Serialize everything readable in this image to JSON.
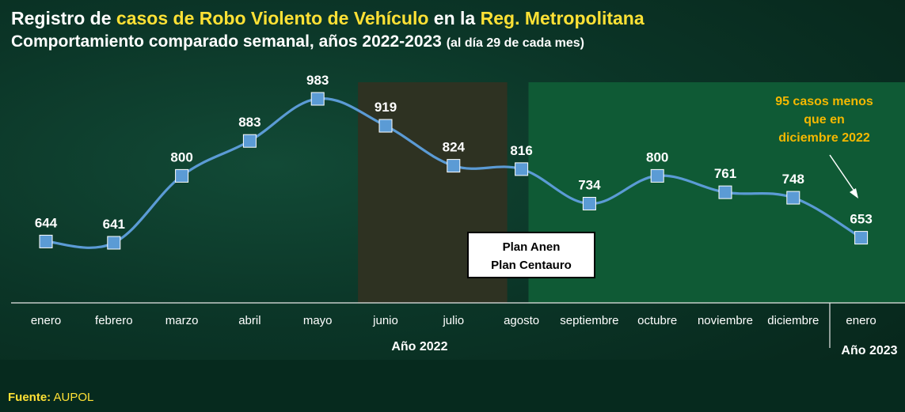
{
  "header": {
    "line1_a": "Registro de ",
    "line1_b": "casos de Robo Violento de Vehículo",
    "line1_c": " en la ",
    "line1_d": "Reg. Metropolitana",
    "line2_a": "Comportamiento comparado semanal, años 2022-2023 ",
    "line2_b": "(al día 29 de cada mes)"
  },
  "source": {
    "label": "Fuente:",
    "value": "AUPOL"
  },
  "chart_data": {
    "type": "line",
    "categories": [
      "enero",
      "febrero",
      "marzo",
      "abril",
      "mayo",
      "junio",
      "julio",
      "agosto",
      "septiembre",
      "octubre",
      "noviembre",
      "diciembre",
      "enero"
    ],
    "values": [
      644,
      641,
      800,
      883,
      983,
      919,
      824,
      816,
      734,
      800,
      761,
      748,
      653
    ],
    "year_groups": [
      {
        "label": "Año 2022",
        "from": 0,
        "to": 11
      },
      {
        "label": "Año 2023",
        "from": 12,
        "to": 12
      }
    ],
    "shaded_ranges": [
      {
        "from": "junio",
        "to": "agosto",
        "color": "#2e3222"
      },
      {
        "from": "agosto",
        "to": "enero",
        "color": "#0f5a35"
      }
    ],
    "annotation_box": {
      "line1": "Plan Anen",
      "line2": "Plan Centauro"
    },
    "callout": {
      "lines": [
        "95 casos menos",
        "que en",
        "diciembre 2022"
      ],
      "color": "#f5b800"
    },
    "line_color": "#5b9bd5",
    "marker_color": "#5b9bd5",
    "label_color": "#ffffff",
    "ylim": [
      560,
      1000
    ]
  }
}
